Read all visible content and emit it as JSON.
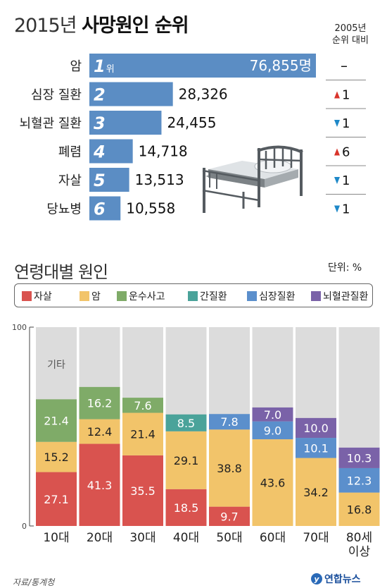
{
  "header": {
    "year": "2015년",
    "title": "사망원인 순위"
  },
  "rank_compare_header": [
    "2005년",
    "순위 대비"
  ],
  "causes_chart": {
    "type": "bar",
    "categories": [
      "암",
      "심장 질환",
      "뇌혈관 질환",
      "폐렴",
      "자살",
      "당뇨병"
    ],
    "ranks": [
      "1",
      "2",
      "3",
      "4",
      "5",
      "6"
    ],
    "rank_suffix_first": "위",
    "values": [
      76855,
      28326,
      24455,
      14718,
      13513,
      10558
    ],
    "value_labels": [
      "76,855명",
      "28,326",
      "24,455",
      "14,718",
      "13,513",
      "10,558"
    ],
    "change": [
      {
        "dir": "none",
        "text": "–"
      },
      {
        "dir": "up",
        "text": "1"
      },
      {
        "dir": "down",
        "text": "1"
      },
      {
        "dir": "up",
        "text": "6"
      },
      {
        "dir": "down",
        "text": "1"
      },
      {
        "dir": "down",
        "text": "1"
      }
    ],
    "bar_color": "#5b8dc4",
    "up_color": "#d9342b",
    "down_color": "#1e88c8"
  },
  "age_section": {
    "title": "연령대별 원인",
    "unit": "단위: %"
  },
  "legend": [
    {
      "label": "자살",
      "color": "#d9534f"
    },
    {
      "label": "암",
      "color": "#f2c46a"
    },
    {
      "label": "운수사고",
      "color": "#7fab68"
    },
    {
      "label": "간질환",
      "color": "#4aa39a"
    },
    {
      "label": "심장질환",
      "color": "#5b8fcc"
    },
    {
      "label": "뇌혈관질환",
      "color": "#7a62a8"
    }
  ],
  "chart_data": {
    "type": "bar",
    "stacked": true,
    "categories": [
      "10대",
      "20대",
      "30대",
      "40대",
      "50대",
      "60대",
      "70대",
      "80세\n이상"
    ],
    "ylim": [
      0,
      100
    ],
    "y_ticks": [
      "0",
      "100"
    ],
    "other_label": "기타",
    "other_color": "#dcdcdc",
    "series": [
      {
        "name": "자살",
        "color": "#d9534f",
        "values": [
          27.1,
          41.3,
          35.5,
          18.5,
          9.7,
          null,
          null,
          null
        ]
      },
      {
        "name": "암",
        "color": "#f2c46a",
        "values": [
          15.2,
          12.4,
          21.4,
          29.1,
          38.8,
          43.6,
          34.2,
          16.8
        ]
      },
      {
        "name": "운수사고",
        "color": "#7fab68",
        "values": [
          21.4,
          16.2,
          7.6,
          null,
          null,
          null,
          null,
          null
        ]
      },
      {
        "name": "간질환",
        "color": "#4aa39a",
        "values": [
          null,
          null,
          null,
          8.5,
          null,
          null,
          null,
          null
        ]
      },
      {
        "name": "심장질환",
        "color": "#5b8fcc",
        "values": [
          null,
          null,
          null,
          null,
          7.8,
          9.0,
          10.1,
          12.3
        ]
      },
      {
        "name": "뇌혈관질환",
        "color": "#7a62a8",
        "values": [
          null,
          null,
          null,
          null,
          null,
          7.0,
          10.0,
          10.3
        ]
      }
    ],
    "value_labels": {
      "자살": [
        "27.1",
        "41.3",
        "35.5",
        "18.5",
        "9.7",
        "",
        "",
        ""
      ],
      "암": [
        "15.2",
        "12.4",
        "21.4",
        "29.1",
        "38.8",
        "43.6",
        "34.2",
        "16.8"
      ],
      "운수사고": [
        "21.4",
        "16.2",
        "7.6",
        "",
        "",
        "",
        "",
        ""
      ],
      "간질환": [
        "",
        "",
        "",
        "8.5",
        "",
        "",
        "",
        ""
      ],
      "심장질환": [
        "",
        "",
        "",
        "",
        "7.8",
        "9.0",
        "10.1",
        "12.3"
      ],
      "뇌혈관질환": [
        "",
        "",
        "",
        "",
        "",
        "7.0",
        "10.0",
        "10.3"
      ]
    }
  },
  "source": "자료/통계청",
  "logo": "연합뉴스"
}
